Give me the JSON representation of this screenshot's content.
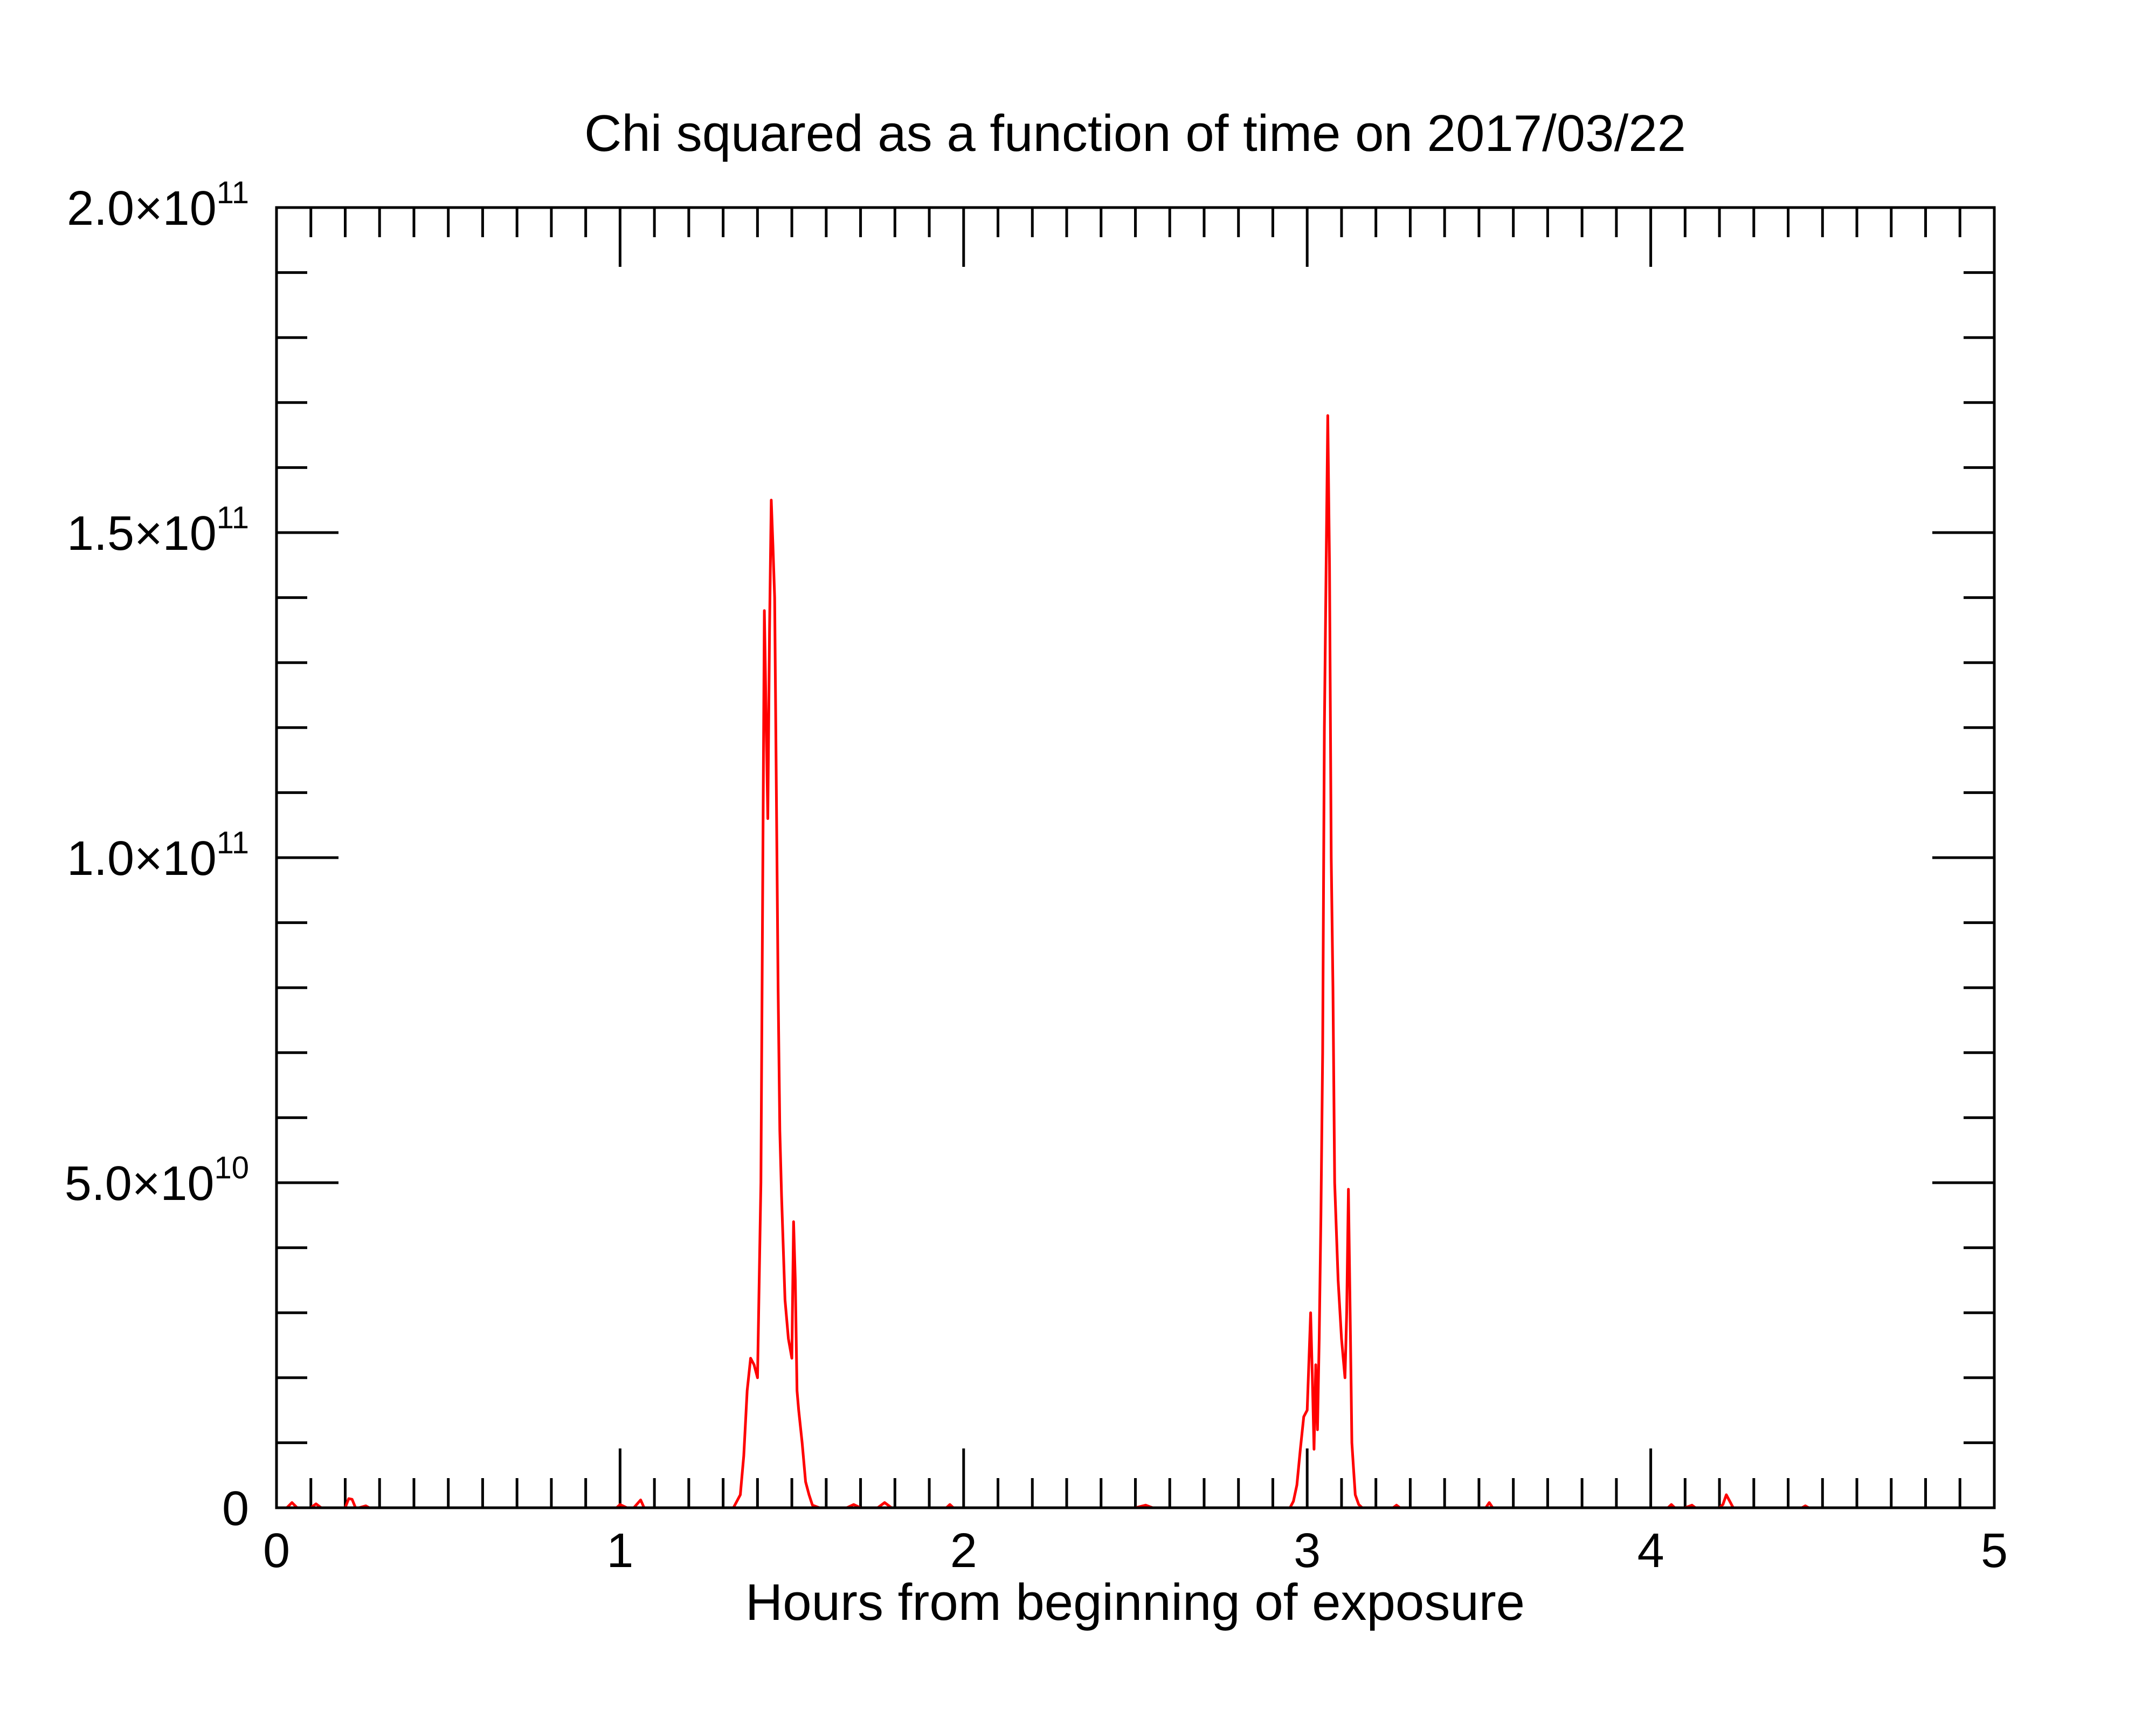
{
  "chart_data": {
    "type": "line",
    "title": "Chi squared as a function of time on 2017/03/22",
    "xlabel": "Hours from beginning of exposure",
    "ylabel": "",
    "xlim": [
      0,
      5
    ],
    "ylim": [
      0,
      200000000000.0
    ],
    "x_ticks": [
      0,
      1,
      2,
      3,
      4,
      5
    ],
    "x_tick_labels": [
      "0",
      "1",
      "2",
      "3",
      "4",
      "5"
    ],
    "x_minor_per_major": 10,
    "y_ticks": [
      0,
      50000000000.0,
      100000000000.0,
      150000000000.0,
      200000000000.0
    ],
    "y_tick_labels": [
      {
        "mantissa": "0",
        "exponent": ""
      },
      {
        "mantissa": "5.0×10",
        "exponent": "10"
      },
      {
        "mantissa": "1.0×10",
        "exponent": "11"
      },
      {
        "mantissa": "1.5×10",
        "exponent": "11"
      },
      {
        "mantissa": "2.0×10",
        "exponent": "11"
      }
    ],
    "y_minor_per_major": 5,
    "grid": false,
    "legend": "none",
    "series": [
      {
        "color": "#ff0000",
        "x": [
          0.0,
          0.03,
          0.045,
          0.06,
          0.1,
          0.115,
          0.13,
          0.2,
          0.21,
          0.22,
          0.23,
          0.24,
          0.26,
          0.27,
          0.6,
          0.99,
          1.0,
          1.02,
          1.04,
          1.06,
          1.07,
          1.08,
          1.2,
          1.33,
          1.35,
          1.36,
          1.37,
          1.38,
          1.39,
          1.4,
          1.41,
          1.42,
          1.43,
          1.435,
          1.44,
          1.445,
          1.45,
          1.455,
          1.46,
          1.465,
          1.47,
          1.475,
          1.48,
          1.49,
          1.5,
          1.505,
          1.51,
          1.515,
          1.52,
          1.53,
          1.54,
          1.55,
          1.56,
          1.58,
          1.6,
          1.66,
          1.68,
          1.7,
          1.75,
          1.77,
          1.79,
          1.9,
          1.95,
          1.96,
          1.97,
          2.2,
          2.5,
          2.53,
          2.55,
          2.8,
          2.95,
          2.96,
          2.97,
          2.98,
          2.99,
          3.0,
          3.01,
          3.015,
          3.02,
          3.025,
          3.03,
          3.035,
          3.04,
          3.045,
          3.05,
          3.06,
          3.065,
          3.07,
          3.075,
          3.08,
          3.09,
          3.1,
          3.11,
          3.115,
          3.12,
          3.125,
          3.13,
          3.135,
          3.14,
          3.15,
          3.16,
          3.18,
          3.25,
          3.26,
          3.27,
          3.5,
          3.52,
          3.53,
          3.54,
          3.8,
          4.05,
          4.06,
          4.07,
          4.1,
          4.12,
          4.13,
          4.2,
          4.21,
          4.22,
          4.23,
          4.24,
          4.4,
          4.44,
          4.45,
          4.46,
          4.6,
          5.0
        ],
        "y": [
          0,
          0,
          800000000.0,
          0,
          0,
          600000000.0,
          0,
          0,
          1400000000.0,
          1300000000.0,
          0,
          0,
          300000000.0,
          0,
          0,
          0,
          500000000.0,
          0,
          0,
          1200000000.0,
          0,
          0,
          0,
          0,
          2000000000.0,
          8000000000.0,
          18000000000.0,
          23000000000.0,
          22000000000.0,
          20000000000.0,
          50000000000.0,
          138000000000.0,
          106000000000.0,
          135000000000.0,
          155000000000.0,
          148000000000.0,
          140000000000.0,
          110000000000.0,
          80000000000.0,
          58000000000.0,
          48000000000.0,
          40000000000.0,
          32000000000.0,
          26000000000.0,
          23000000000.0,
          44000000000.0,
          35000000000.0,
          18000000000.0,
          15000000000.0,
          10000000000.0,
          4000000000.0,
          2000000000.0,
          400000000.0,
          0,
          0,
          0,
          500000000.0,
          0,
          0,
          800000000.0,
          0,
          0,
          0,
          500000000.0,
          0,
          0,
          0,
          400000000.0,
          0,
          0,
          0,
          1000000000.0,
          3500000000.0,
          9000000000.0,
          14000000000.0,
          15000000000.0,
          30000000000.0,
          20000000000.0,
          9000000000.0,
          22000000000.0,
          12000000000.0,
          26000000000.0,
          45000000000.0,
          70000000000.0,
          120000000000.0,
          168000000000.0,
          145000000000.0,
          100000000000.0,
          80000000000.0,
          50000000000.0,
          35000000000.0,
          26000000000.0,
          20000000000.0,
          30000000000.0,
          49000000000.0,
          30000000000.0,
          10000000000.0,
          6000000000.0,
          2000000000.0,
          500000000.0,
          0,
          0,
          0,
          400000000.0,
          0,
          0,
          0,
          800000000.0,
          0,
          0,
          0,
          500000000.0,
          0,
          0,
          400000000.0,
          0,
          0,
          500000000.0,
          2000000000.0,
          1000000000.0,
          0,
          0,
          0,
          300000000.0,
          0,
          0,
          0
        ]
      }
    ]
  }
}
